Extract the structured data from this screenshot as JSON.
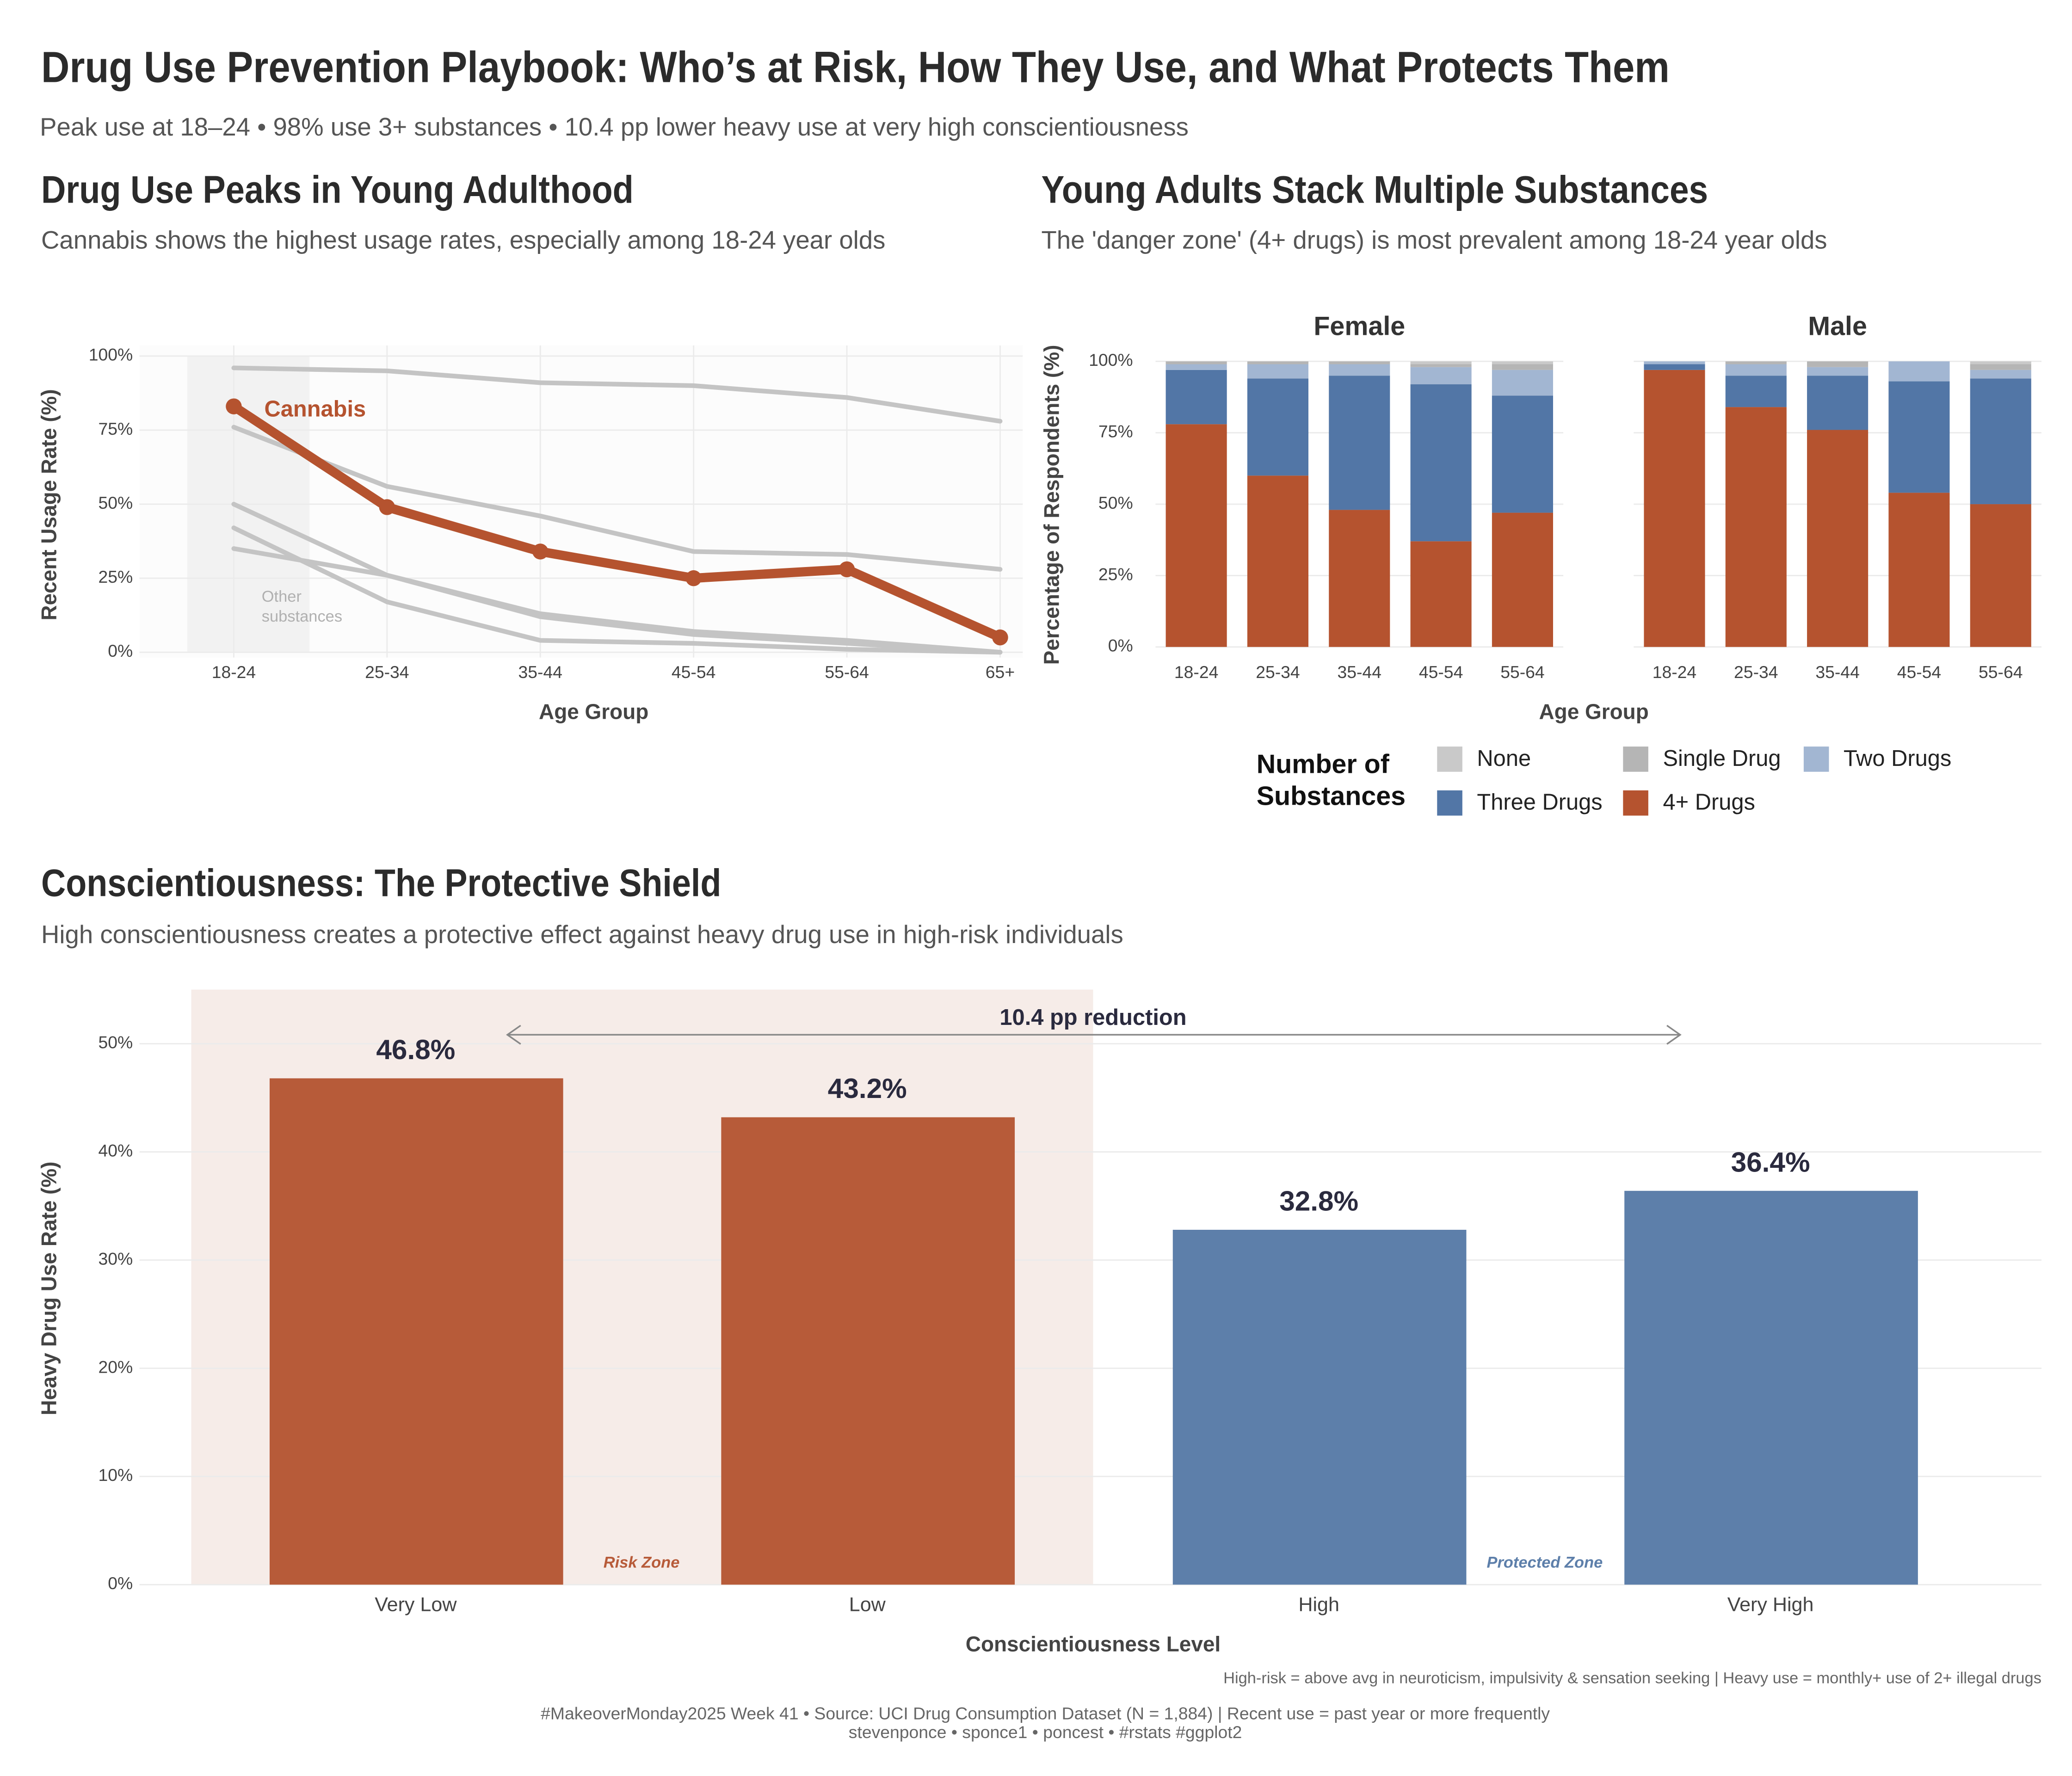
{
  "header": {
    "title": "Drug Use Prevention Playbook: Who’s at Risk, How They Use, and What Protects Them",
    "subtitle": "Peak use at 18–24 • 98% use 3+ substances • 10.4 pp lower heavy use at very high conscientiousness"
  },
  "chart_data": [
    {
      "type": "line",
      "title": "Drug Use Peaks in Young Adulthood",
      "subtitle": "Cannabis shows the highest usage rates, especially among 18-24 year olds",
      "x_label": "Age Group",
      "y_label": "Recent Usage Rate (%)",
      "categories": [
        "18-24",
        "25-34",
        "35-44",
        "45-54",
        "55-64",
        "65+"
      ],
      "series": [
        {
          "name": "Cannabis",
          "color": "#b5532f",
          "values": [
            83,
            49,
            34,
            25,
            28,
            5
          ]
        }
      ],
      "other_series": {
        "label": "Other substances",
        "color": "#c4c4c4",
        "values": [
          [
            96,
            95,
            91,
            90,
            86,
            78
          ],
          [
            76,
            56,
            46,
            34,
            33,
            28
          ],
          [
            50,
            26,
            12,
            6,
            3,
            0
          ],
          [
            42,
            17,
            4,
            3,
            1,
            0
          ],
          [
            35,
            26,
            13,
            7,
            4,
            0
          ]
        ]
      },
      "ylim": [
        0,
        100
      ],
      "yticks": [
        {
          "value": 0,
          "label": "0%"
        },
        {
          "value": 25,
          "label": "25%"
        },
        {
          "value": 50,
          "label": "50%"
        },
        {
          "value": 75,
          "label": "75%"
        },
        {
          "value": 100,
          "label": "100%"
        }
      ],
      "grid": true
    },
    {
      "type": "stacked_bar",
      "title": "Young Adults Stack Multiple Substances",
      "subtitle": "The 'danger zone' (4+ drugs) is most prevalent among 18-24 year olds",
      "x_label": "Age Group",
      "y_label": "Percentage of Respondents (%)",
      "legend_title": "Number of Substances",
      "categories": [
        "18-24",
        "25-34",
        "35-44",
        "45-54",
        "55-64"
      ],
      "facets": [
        {
          "title": "Female",
          "series": [
            {
              "name": "None",
              "color": "#c9c9c9",
              "values": [
                0,
                0,
                0,
                1,
                1
              ]
            },
            {
              "name": "Single Drug",
              "color": "#b5b5b5",
              "values": [
                1,
                1,
                1,
                1,
                2
              ]
            },
            {
              "name": "Two Drugs",
              "color": "#a2b6d2",
              "values": [
                2,
                5,
                4,
                6,
                9
              ]
            },
            {
              "name": "Three Drugs",
              "color": "#5276a6",
              "values": [
                19,
                34,
                47,
                55,
                41
              ]
            },
            {
              "name": "4+ Drugs",
              "color": "#b5532f",
              "values": [
                78,
                60,
                48,
                37,
                47
              ]
            }
          ]
        },
        {
          "title": "Male",
          "series": [
            {
              "name": "None",
              "color": "#c9c9c9",
              "values": [
                0,
                0,
                0,
                0,
                1
              ]
            },
            {
              "name": "Single Drug",
              "color": "#b5b5b5",
              "values": [
                0,
                1,
                2,
                0,
                2
              ]
            },
            {
              "name": "Two Drugs",
              "color": "#a2b6d2",
              "values": [
                1,
                4,
                3,
                7,
                3
              ]
            },
            {
              "name": "Three Drugs",
              "color": "#5276a6",
              "values": [
                2,
                11,
                19,
                39,
                44
              ]
            },
            {
              "name": "4+ Drugs",
              "color": "#b5532f",
              "values": [
                97,
                84,
                76,
                54,
                50
              ]
            }
          ]
        }
      ],
      "ylim": [
        0,
        100
      ],
      "yticks": [
        {
          "value": 0,
          "label": "0%"
        },
        {
          "value": 25,
          "label": "25%"
        },
        {
          "value": 50,
          "label": "50%"
        },
        {
          "value": 75,
          "label": "75%"
        },
        {
          "value": 100,
          "label": "100%"
        }
      ],
      "grid": true
    },
    {
      "type": "bar",
      "title": "Conscientiousness: The Protective Shield",
      "subtitle": "High conscientiousness creates a protective effect against heavy drug use in high-risk individuals",
      "x_label": "Conscientiousness Level",
      "y_label": "Heavy Drug Use Rate (%)",
      "categories": [
        "Very Low",
        "Low",
        "High",
        "Very High"
      ],
      "values": [
        46.8,
        43.2,
        32.8,
        36.4
      ],
      "value_labels": [
        "46.8%",
        "43.2%",
        "32.8%",
        "36.4%"
      ],
      "colors": [
        "#b75b39",
        "#b75b39",
        "#5d7faa",
        "#5d7faa"
      ],
      "annotations": {
        "reduction": "10.4 pp reduction",
        "risk_zone": "Risk Zone",
        "protected_zone": "Protected Zone"
      },
      "ylim": [
        0,
        55
      ],
      "yticks": [
        {
          "value": 0,
          "label": "0%"
        },
        {
          "value": 10,
          "label": "10%"
        },
        {
          "value": 20,
          "label": "20%"
        },
        {
          "value": 30,
          "label": "30%"
        },
        {
          "value": 40,
          "label": "40%"
        },
        {
          "value": 50,
          "label": "50%"
        }
      ],
      "grid": true
    }
  ],
  "footer": {
    "note": "High-risk = above avg in neuroticism, impulsivity & sensation seeking | Heavy use = monthly+ use of 2+ illegal drugs",
    "source": "#MakeoverMonday2025 Week 41 • Source: UCI Drug Consumption Dataset (N = 1,884) | Recent use = past year or more frequently",
    "credits": "stevenponce • sponce1 • poncest • #rstats #ggplot2"
  }
}
